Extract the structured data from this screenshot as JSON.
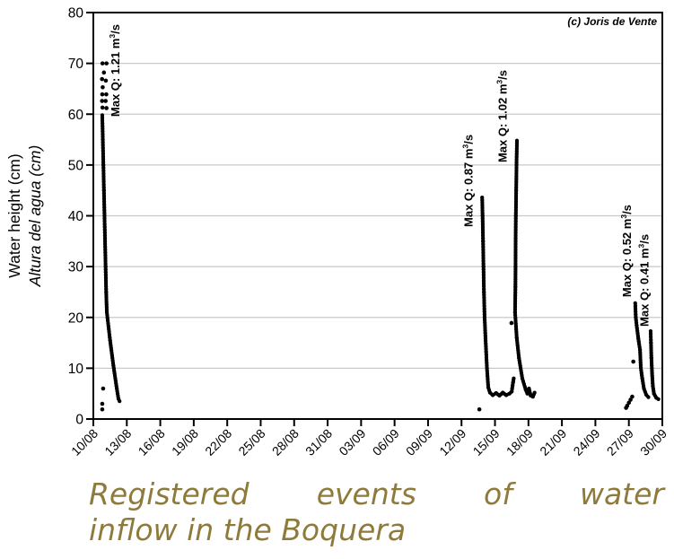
{
  "caption": {
    "line1": "Registered events of water",
    "line2": "inflow in the Boquera",
    "color": "#8E7B3C"
  },
  "chart_data": {
    "type": "scatter",
    "title": "",
    "ylabel": "Water height (cm)",
    "ylabel_secondary": "Altura del agua (cm)",
    "copyright": "(c) Joris de Vente",
    "ylim": [
      0,
      80
    ],
    "y_ticks": [
      0,
      10,
      20,
      30,
      40,
      50,
      60,
      70,
      80
    ],
    "x_tick_labels": [
      "10/08",
      "13/08",
      "16/08",
      "19/08",
      "22/08",
      "25/08",
      "28/08",
      "31/08",
      "03/09",
      "06/09",
      "09/09",
      "12/09",
      "15/09",
      "18/09",
      "21/09",
      "24/09",
      "27/09",
      "30/09"
    ],
    "x_tick_interval_days": 3,
    "x_span_days": 51,
    "grid": {
      "horizontal": true,
      "color": "#C9C9C9"
    },
    "marker_color": "#000000",
    "point_units": [
      "days since 10/08",
      "water height cm"
    ],
    "events": [
      {
        "name": "event-1",
        "label_text": "Max Q: 1.21 m³/s",
        "q_max_m3s": 1.21,
        "q_max_label": {
          "base": "Max Q: 1.21 m",
          "sup": "3",
          "suffix": "/s"
        },
        "annotation_anchor": {
          "day": 2.35,
          "cm": 59.5
        },
        "peak_cm": 70,
        "sparse_points": [
          [
            0.82,
            70
          ],
          [
            1.18,
            70
          ],
          [
            0.95,
            68.2
          ],
          [
            0.78,
            66.9
          ],
          [
            1.12,
            66.6
          ],
          [
            0.84,
            65.3
          ],
          [
            0.8,
            63.9
          ],
          [
            1.16,
            63.9
          ],
          [
            0.78,
            62.6
          ],
          [
            1.1,
            62.6
          ],
          [
            0.82,
            61.3
          ],
          [
            1.18,
            61.2
          ],
          [
            0.88,
            6.0
          ],
          [
            0.8,
            3.0
          ],
          [
            0.8,
            1.9
          ]
        ],
        "trace": [
          [
            0.8,
            59.8
          ],
          [
            0.85,
            55
          ],
          [
            0.9,
            50
          ],
          [
            0.95,
            45
          ],
          [
            1.0,
            40
          ],
          [
            1.05,
            35
          ],
          [
            1.1,
            30
          ],
          [
            1.15,
            25
          ],
          [
            1.21,
            21
          ],
          [
            1.5,
            15.5
          ],
          [
            1.8,
            10.5
          ],
          [
            2.1,
            6
          ],
          [
            2.25,
            4
          ],
          [
            2.35,
            3.5
          ]
        ]
      },
      {
        "name": "event-2",
        "label_text": "Max Q: 0.87 m³/s",
        "q_max_m3s": 0.87,
        "q_max_label": {
          "base": "Max Q: 0.87 m",
          "sup": "3",
          "suffix": "/s"
        },
        "annotation_anchor": {
          "day": 34.0,
          "cm": 37.8
        },
        "peak_cm": 43.6,
        "sparse_points": [
          [
            34.6,
            1.9
          ]
        ],
        "trace": [
          [
            34.85,
            43.6
          ],
          [
            34.89,
            40
          ],
          [
            34.93,
            35
          ],
          [
            34.97,
            30
          ],
          [
            35.01,
            25
          ],
          [
            35.07,
            20
          ],
          [
            35.15,
            15.9
          ],
          [
            35.28,
            10
          ],
          [
            35.4,
            6.2
          ],
          [
            35.55,
            5.2
          ],
          [
            35.8,
            4.7
          ],
          [
            36.1,
            5.1
          ],
          [
            36.4,
            4.6
          ],
          [
            36.7,
            5.2
          ],
          [
            37.0,
            4.7
          ],
          [
            37.3,
            5.0
          ],
          [
            37.5,
            5.4
          ],
          [
            37.62,
            7.2
          ],
          [
            37.68,
            8.0
          ]
        ]
      },
      {
        "name": "event-3",
        "label_text": "Max Q: 1.02 m³/s",
        "q_max_m3s": 1.02,
        "q_max_label": {
          "base": "Max Q: 1.02 m",
          "sup": "3",
          "suffix": "/s"
        },
        "annotation_anchor": {
          "day": 37.05,
          "cm": 50.5
        },
        "peak_cm": 54.8,
        "sparse_points": [
          [
            37.48,
            18.9
          ]
        ],
        "trace": [
          [
            37.97,
            54.8
          ],
          [
            37.93,
            50
          ],
          [
            37.9,
            45
          ],
          [
            37.87,
            40
          ],
          [
            37.85,
            35
          ],
          [
            37.84,
            30
          ],
          [
            37.83,
            26
          ],
          [
            37.8,
            21
          ],
          [
            37.95,
            16
          ],
          [
            38.15,
            12
          ],
          [
            38.45,
            8
          ],
          [
            38.75,
            5.8
          ],
          [
            38.9,
            5.0
          ],
          [
            39.05,
            6.0
          ],
          [
            39.2,
            4.6
          ],
          [
            39.4,
            4.4
          ],
          [
            39.55,
            5.2
          ]
        ]
      },
      {
        "name": "event-4",
        "label_text": "Max Q: 0.52 m³/s",
        "q_max_m3s": 0.52,
        "q_max_label": {
          "base": "Max Q: 0.52 m",
          "sup": "3",
          "suffix": "/s"
        },
        "annotation_anchor": {
          "day": 48.2,
          "cm": 24.0
        },
        "peak_cm": 22.8,
        "sparse_points": [
          [
            48.4,
            11.3
          ],
          [
            47.75,
            2.2
          ],
          [
            47.85,
            2.6
          ],
          [
            48.0,
            3.2
          ],
          [
            48.15,
            3.8
          ],
          [
            48.3,
            4.4
          ]
        ],
        "trace": [
          [
            48.57,
            22.8
          ],
          [
            48.62,
            20
          ],
          [
            48.7,
            18.4
          ],
          [
            48.85,
            15.8
          ],
          [
            49.0,
            13.6
          ],
          [
            49.07,
            10.1
          ],
          [
            49.2,
            8
          ],
          [
            49.35,
            6
          ],
          [
            49.55,
            4.8
          ],
          [
            49.75,
            4.3
          ]
        ]
      },
      {
        "name": "event-5",
        "label_text": "Max Q: 0.41 m³/s",
        "q_max_m3s": 0.41,
        "q_max_label": {
          "base": "Max Q: 0.41 m",
          "sup": "3",
          "suffix": "/s"
        },
        "annotation_anchor": {
          "day": 49.75,
          "cm": 18.2
        },
        "peak_cm": 17.3,
        "sparse_points": [],
        "trace": [
          [
            49.95,
            17.3
          ],
          [
            49.98,
            15
          ],
          [
            50.02,
            12
          ],
          [
            50.08,
            9
          ],
          [
            50.15,
            6.5
          ],
          [
            50.25,
            5.0
          ],
          [
            50.45,
            4.2
          ],
          [
            50.65,
            3.9
          ]
        ]
      }
    ]
  }
}
